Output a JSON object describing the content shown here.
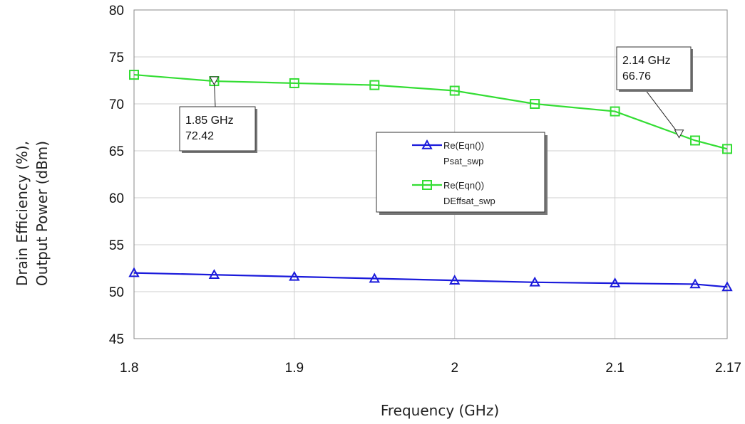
{
  "chart_data": {
    "type": "line",
    "title": "",
    "xlabel": "Frequency (GHz)",
    "ylabel_lines": [
      "Drain Efficiency (%),",
      "Output Power (dBm)"
    ],
    "xlim": [
      1.8,
      2.17
    ],
    "ylim": [
      45,
      80
    ],
    "x_ticks": [
      {
        "value": 1.8,
        "label": "1.8"
      },
      {
        "value": 1.9,
        "label": "1.9"
      },
      {
        "value": 2.0,
        "label": "2"
      },
      {
        "value": 2.1,
        "label": "2.1"
      },
      {
        "value": 2.17,
        "label": "2.17"
      }
    ],
    "y_ticks": [
      45,
      50,
      55,
      60,
      65,
      70,
      75,
      80
    ],
    "grid": true,
    "legend_position": "center-right",
    "series": [
      {
        "name": "Re(Eqn())",
        "subname": "Psat_swp",
        "color": "#1a1adb",
        "marker": "triangle",
        "x": [
          1.8,
          1.85,
          1.9,
          1.95,
          2.0,
          2.05,
          2.1,
          2.15,
          2.17
        ],
        "y": [
          52.0,
          51.8,
          51.6,
          51.4,
          51.2,
          51.0,
          50.9,
          50.8,
          50.5
        ]
      },
      {
        "name": "Re(Eqn())",
        "subname": "DEffsat_swp",
        "color": "#33dd33",
        "marker": "square",
        "x": [
          1.8,
          1.85,
          1.9,
          1.95,
          2.0,
          2.05,
          2.1,
          2.15,
          2.17
        ],
        "y": [
          73.1,
          72.42,
          72.2,
          72.0,
          71.4,
          70.0,
          69.2,
          66.1,
          65.2
        ]
      }
    ],
    "annotations": [
      {
        "x": 1.85,
        "y": 72.42,
        "lines": [
          "1.85 GHz",
          "72.42"
        ]
      },
      {
        "x": 2.14,
        "y": 66.76,
        "lines": [
          "2.14 GHz",
          "66.76"
        ]
      }
    ]
  }
}
